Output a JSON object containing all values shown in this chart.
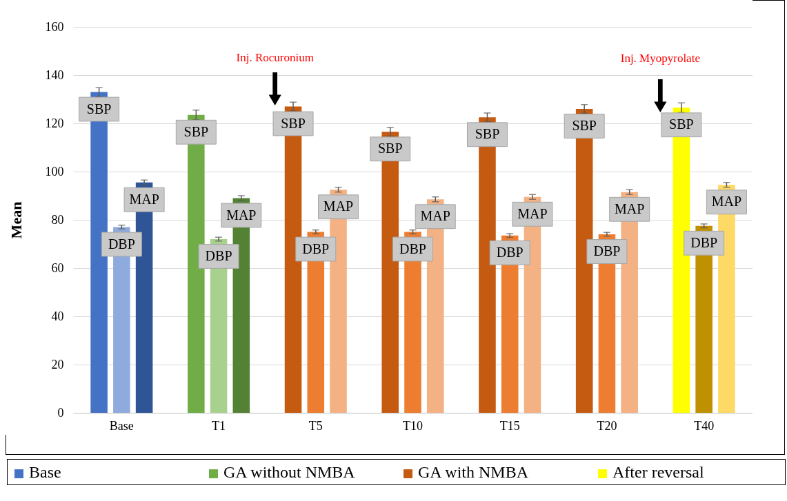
{
  "chart_data": {
    "type": "bar",
    "ylabel": "Mean",
    "categories": [
      "Base",
      "T1",
      "T5",
      "T10",
      "T15",
      "T20",
      "T40"
    ],
    "series": [
      {
        "name": "SBP",
        "colors": [
          "#4472c4",
          "#70ad47",
          "#c55a11",
          "#c55a11",
          "#c55a11",
          "#c55a11",
          "#ffff00"
        ],
        "values": [
          133,
          123.5,
          127,
          116.5,
          122.5,
          126,
          126.5
        ],
        "errors": [
          1.8,
          2,
          1.8,
          1.8,
          1.8,
          1.8,
          2
        ]
      },
      {
        "name": "DBP",
        "colors": [
          "#8faadc",
          "#a9d18e",
          "#ed7d31",
          "#ed7d31",
          "#ed7d31",
          "#ed7d31",
          "#bf9000"
        ],
        "values": [
          77,
          72,
          75,
          75,
          73.5,
          74,
          77.5
        ],
        "errors": [
          0.8,
          0.8,
          0.8,
          0.8,
          0.8,
          0.8,
          0.8
        ]
      },
      {
        "name": "MAP",
        "colors": [
          "#2f5597",
          "#548235",
          "#f4b183",
          "#f4b183",
          "#f4b183",
          "#f4b183",
          "#ffd966"
        ],
        "values": [
          95.5,
          89,
          92.5,
          88.5,
          89.5,
          91.5,
          94.5
        ],
        "errors": [
          1,
          1,
          1,
          1,
          1,
          1,
          1
        ]
      }
    ],
    "ylim": [
      0,
      160
    ],
    "yticks": [
      0,
      20,
      40,
      60,
      80,
      100,
      120,
      140,
      160
    ],
    "grid": "y",
    "annotations": [
      "Inj. Rocuronium",
      "Inj. Myopyrolate",
      "Base",
      "GA without NMBA",
      "GA with NMBA",
      "After reversal"
    ]
  }
}
